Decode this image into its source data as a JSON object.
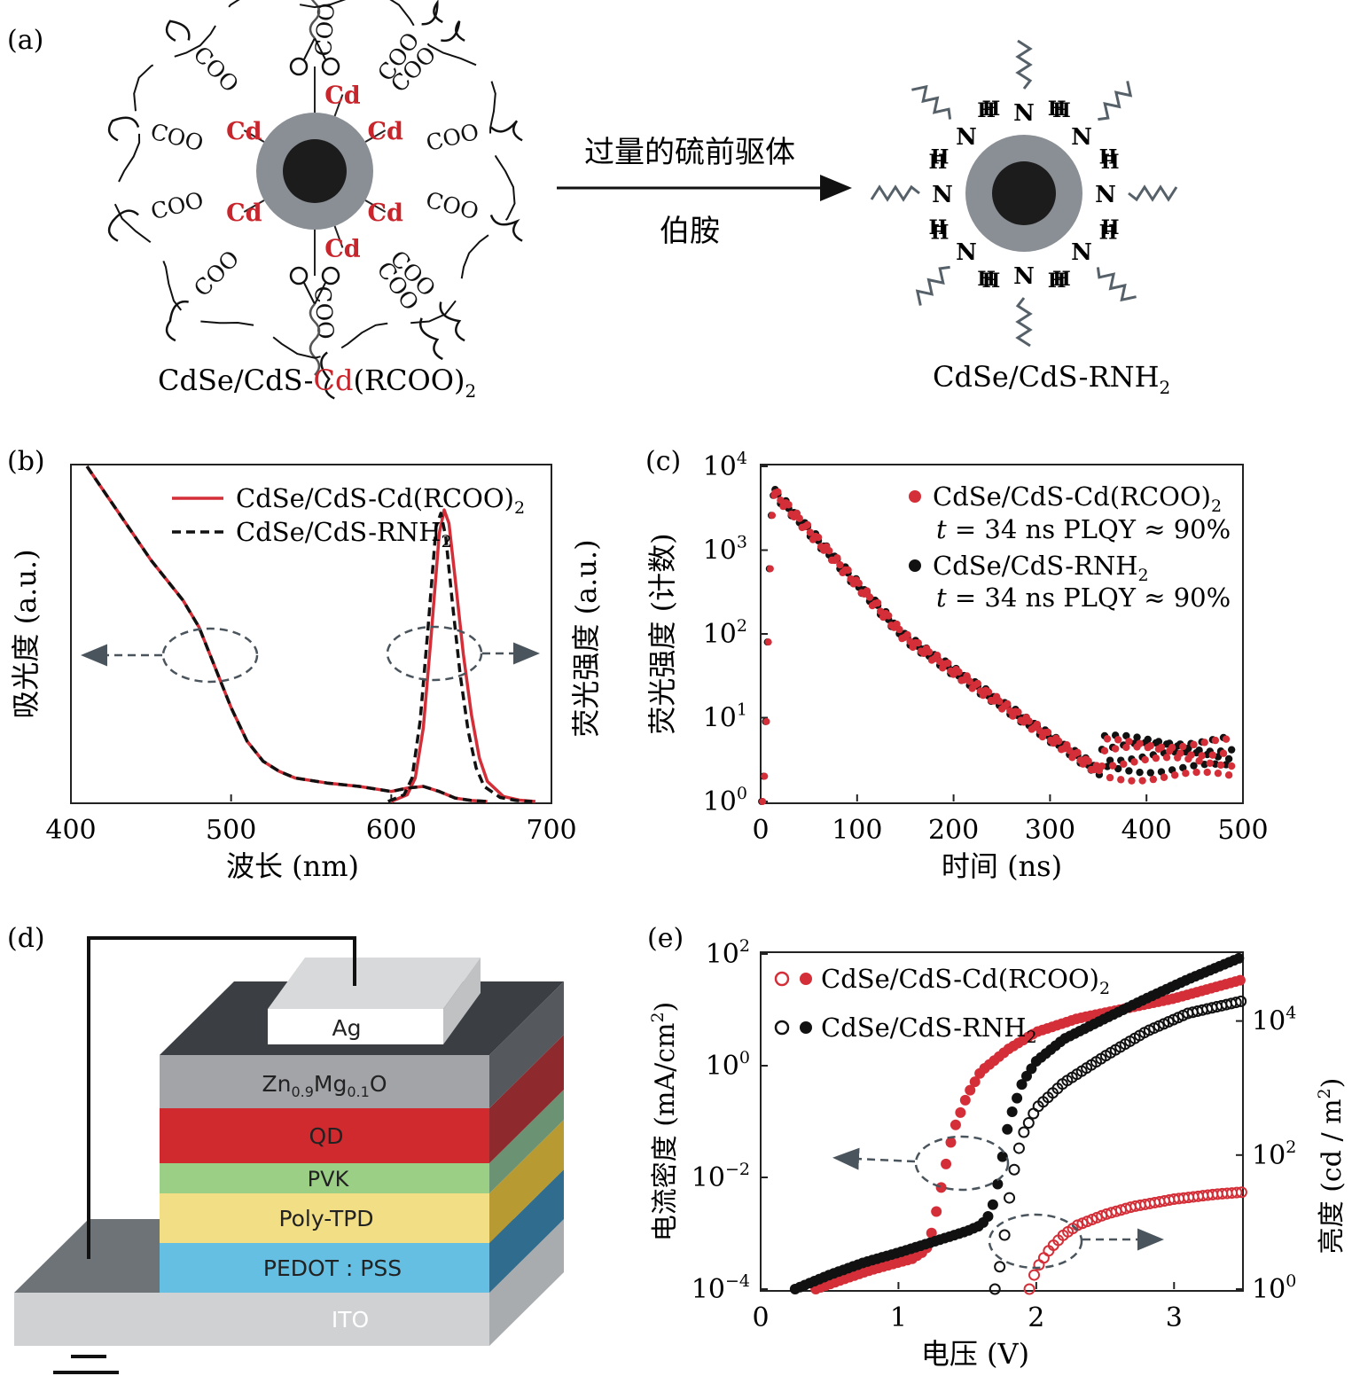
{
  "panel_a": {
    "label": "(a)",
    "left_caption": "CdSe/CdS-",
    "left_caption_red": "Cd",
    "left_caption_tail": "(RCOO)",
    "left_caption_sub": "2",
    "right_caption": "CdSe/CdS-RNH",
    "right_caption_sub": "2",
    "arrow_top": "过量的硫前驱体",
    "arrow_bottom": "伯胺",
    "cd": "Cd",
    "coo": "COO",
    "amine_n": "N",
    "amine_h": "H",
    "colors": {
      "cd": "#c8262d",
      "shell": "#8a8f96",
      "core": "#1c1c1c"
    }
  },
  "panel_b": {
    "label": "(b)",
    "chart_data": {
      "type": "line",
      "xlabel": "波长 (nm)",
      "ylabel_left": "吸光度 (a.u.)",
      "ylabel_right": "荧光强度 (a.u.)",
      "xlim": [
        400,
        700
      ],
      "xticks": [
        "400",
        "500",
        "600",
        "700"
      ],
      "legend_position": "top-right",
      "series": [
        {
          "name": "CdSe/CdS-Cd(RCOO)",
          "name_sub": "2",
          "style": "solid",
          "color": "#d42f38",
          "absorbance": {
            "x": [
              410,
              420,
              430,
              440,
              450,
              460,
              470,
              480,
              490,
              500,
              510,
              520,
              530,
              540,
              560,
              580,
              600,
              610,
              620,
              630,
              640,
              650,
              660
            ],
            "y": [
              1.0,
              0.93,
              0.86,
              0.79,
              0.72,
              0.66,
              0.6,
              0.52,
              0.4,
              0.28,
              0.18,
              0.12,
              0.09,
              0.07,
              0.055,
              0.045,
              0.03,
              0.04,
              0.045,
              0.03,
              0.01,
              0.003,
              0.0
            ]
          },
          "pl": {
            "x": [
              600,
              610,
              615,
              620,
              625,
              630,
              633,
              636,
              640,
              645,
              650,
              655,
              660,
              670,
              680,
              690
            ],
            "y": [
              0.0,
              0.02,
              0.07,
              0.22,
              0.5,
              0.8,
              0.87,
              0.83,
              0.66,
              0.44,
              0.26,
              0.13,
              0.06,
              0.015,
              0.004,
              0.0
            ]
          }
        },
        {
          "name": "CdSe/CdS-RNH",
          "name_sub": "2",
          "style": "dashed",
          "color": "#111111",
          "absorbance": {
            "x": [
              410,
              420,
              430,
              440,
              450,
              460,
              470,
              480,
              490,
              500,
              510,
              520,
              530,
              540,
              560,
              580,
              600,
              610,
              620,
              630,
              640,
              650,
              660
            ],
            "y": [
              1.0,
              0.93,
              0.86,
              0.79,
              0.72,
              0.66,
              0.6,
              0.52,
              0.4,
              0.28,
              0.18,
              0.12,
              0.09,
              0.07,
              0.055,
              0.045,
              0.03,
              0.04,
              0.045,
              0.03,
              0.01,
              0.003,
              0.0
            ]
          },
          "pl": {
            "x": [
              598,
              608,
              613,
              618,
              623,
              628,
              631,
              634,
              638,
              643,
              648,
              653,
              658,
              668,
              678,
              688
            ],
            "y": [
              0.0,
              0.02,
              0.07,
              0.24,
              0.52,
              0.82,
              0.86,
              0.79,
              0.6,
              0.38,
              0.21,
              0.1,
              0.045,
              0.012,
              0.003,
              0.0
            ]
          }
        }
      ]
    }
  },
  "panel_c": {
    "label": "(c)",
    "chart_data": {
      "type": "scatter",
      "xlabel": "时间 (ns)",
      "ylabel": "荧光强度 (计数)",
      "xlim": [
        0,
        500
      ],
      "ylim": [
        1,
        10000
      ],
      "yscale": "log",
      "xticks": [
        "0",
        "100",
        "200",
        "300",
        "400",
        "500"
      ],
      "yticks": [
        {
          "base": "10",
          "exp": "0"
        },
        {
          "base": "10",
          "exp": "1"
        },
        {
          "base": "10",
          "exp": "2"
        },
        {
          "base": "10",
          "exp": "3"
        },
        {
          "base": "10",
          "exp": "4"
        }
      ],
      "legend_position": "top-right",
      "decay_peak": {
        "x": 15,
        "y": 4800
      },
      "lifetime_ns": 34,
      "series": [
        {
          "name": "CdSe/CdS-Cd(RCOO)",
          "name_sub": "2",
          "color": "#d42f38",
          "note_t": "t",
          "note_rest": " = 34 ns PLQY ≈ 90%"
        },
        {
          "name": "CdSe/CdS-RNH",
          "name_sub": "2",
          "color": "#111111",
          "note_t": "t",
          "note_rest": " = 34 ns PLQY ≈ 90%"
        }
      ]
    }
  },
  "panel_d": {
    "label": "(d)",
    "layers": [
      {
        "name": "Ag",
        "color": "#f2f2f2"
      },
      {
        "name": "Zn",
        "sub1": "0.9",
        "mid": "Mg",
        "sub2": "0.1",
        "tail": "O",
        "color": "#a2a4a8"
      },
      {
        "name": "QD",
        "color": "#d02a2f"
      },
      {
        "name": "PVK",
        "color": "#9ccf86"
      },
      {
        "name": "Poly-TPD",
        "color": "#f2de85"
      },
      {
        "name": "PEDOT : PSS",
        "color": "#64bfe2"
      },
      {
        "name": "ITO",
        "color": "#cfd1d3"
      }
    ]
  },
  "panel_e": {
    "label": "(e)",
    "chart_data": {
      "type": "scatter",
      "xlabel": "电压 (V)",
      "ylabel_left": "电流密度 (mA/cm",
      "ylabel_left_sup": "2",
      "ylabel_left_tail": ")",
      "ylabel_right": "亮度 (cd / m",
      "ylabel_right_sup": "2",
      "ylabel_right_tail": ")",
      "xlim": [
        0,
        3.5
      ],
      "xticks": [
        "0",
        "1",
        "2",
        "3"
      ],
      "ylim_left": [
        0.0001,
        100
      ],
      "ylim_right": [
        1,
        100000
      ],
      "yscale": "log",
      "yticks_left": [
        {
          "base": "10",
          "exp": "−4"
        },
        {
          "base": "10",
          "exp": "−2"
        },
        {
          "base": "10",
          "exp": "0"
        },
        {
          "base": "10",
          "exp": "2"
        }
      ],
      "yticks_right": [
        {
          "base": "10",
          "exp": "0"
        },
        {
          "base": "10",
          "exp": "2"
        },
        {
          "base": "10",
          "exp": "4"
        }
      ],
      "legend_position": "top-left",
      "series": [
        {
          "name": "CdSe/CdS-Cd(RCOO)",
          "name_sub": "2",
          "color": "#d42f38",
          "current_density": {
            "x": [
              0.4,
              0.6,
              0.8,
              1.0,
              1.1,
              1.2,
              1.25,
              1.3,
              1.35,
              1.4,
              1.5,
              1.6,
              1.8,
              2.0,
              2.3,
              2.6,
              3.0,
              3.5
            ],
            "y": [
              0.0001,
              0.00015,
              0.00022,
              0.0003,
              0.00035,
              0.0005,
              0.0012,
              0.005,
              0.02,
              0.07,
              0.3,
              0.8,
              2.0,
              4.0,
              7.0,
              10.0,
              16.0,
              35.0
            ]
          },
          "luminance": {
            "x": [
              1.95,
              2.0,
              2.1,
              2.2,
              2.3,
              2.5,
              2.7,
              3.0,
              3.3,
              3.5
            ],
            "y": [
              1.0,
              2.0,
              4.0,
              6.5,
              9.0,
              13.0,
              17.0,
              22.0,
              26.0,
              28.0
            ]
          }
        },
        {
          "name": "CdSe/CdS-RNH",
          "name_sub": "2",
          "color": "#111111",
          "current_density": {
            "x": [
              0.25,
              0.5,
              0.75,
              1.0,
              1.25,
              1.5,
              1.6,
              1.65,
              1.7,
              1.75,
              1.8,
              1.9,
              2.0,
              2.2,
              2.5,
              2.8,
              3.1,
              3.5
            ],
            "y": [
              0.0001,
              0.00018,
              0.0003,
              0.00045,
              0.0007,
              0.0011,
              0.0014,
              0.002,
              0.004,
              0.02,
              0.1,
              0.5,
              1.2,
              3.0,
              7.0,
              16.0,
              35.0,
              90.0
            ]
          },
          "luminance": {
            "x": [
              1.7,
              1.75,
              1.8,
              1.85,
              1.9,
              2.0,
              2.2,
              2.5,
              2.8,
              3.1,
              3.5
            ],
            "y": [
              1.0,
              3.0,
              20.0,
              80.0,
              200.0,
              500.0,
              1200.0,
              3000.0,
              7000.0,
              13000.0,
              20000.0
            ]
          }
        }
      ]
    }
  }
}
